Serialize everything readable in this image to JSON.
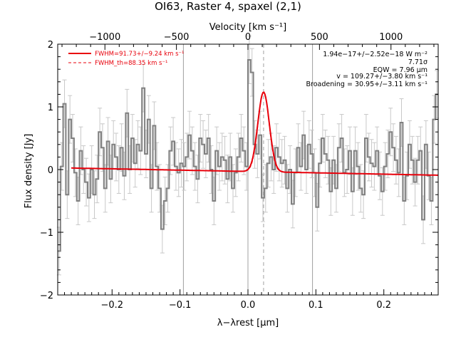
{
  "chart_data": {
    "type": "line",
    "title": "OI63, Raster 4, spaxel (2,1)",
    "xlabel": "λ−λrest [μm]",
    "ylabel": "Flux density [Jy]",
    "top_xlabel": "Velocity [km s⁻¹]",
    "xlim": [
      -0.28,
      0.28
    ],
    "ylim": [
      -2.0,
      2.0
    ],
    "top_xlim": [
      -1330,
      1330
    ],
    "x_ticks": [
      -0.2,
      -0.1,
      0.0,
      0.1,
      0.2
    ],
    "x_tick_labels": [
      "−0.2",
      "−0.1",
      "0.0",
      "0.1",
      "0.2"
    ],
    "y_ticks": [
      -2,
      -1,
      0,
      1,
      2
    ],
    "y_tick_labels": [
      "−2",
      "−1",
      "0",
      "1",
      "2"
    ],
    "top_ticks": [
      -1000,
      -500,
      0,
      500,
      1000
    ],
    "top_tick_labels": [
      "−1000",
      "−500",
      "0",
      "500",
      "1000"
    ],
    "vertical_lines": [
      -0.095,
      0.0,
      0.095
    ],
    "line_center": 0.023,
    "series": [
      {
        "name": "data",
        "style": "step",
        "color": "#808080",
        "x": [
          -0.28,
          -0.276,
          -0.272,
          -0.268,
          -0.264,
          -0.26,
          -0.256,
          -0.252,
          -0.248,
          -0.244,
          -0.24,
          -0.236,
          -0.232,
          -0.228,
          -0.224,
          -0.22,
          -0.216,
          -0.212,
          -0.208,
          -0.204,
          -0.2,
          -0.196,
          -0.192,
          -0.188,
          -0.184,
          -0.18,
          -0.176,
          -0.172,
          -0.168,
          -0.164,
          -0.16,
          -0.156,
          -0.152,
          -0.148,
          -0.144,
          -0.14,
          -0.136,
          -0.132,
          -0.128,
          -0.124,
          -0.12,
          -0.116,
          -0.112,
          -0.108,
          -0.104,
          -0.1,
          -0.096,
          -0.092,
          -0.088,
          -0.084,
          -0.08,
          -0.076,
          -0.072,
          -0.068,
          -0.064,
          -0.06,
          -0.056,
          -0.052,
          -0.048,
          -0.044,
          -0.04,
          -0.036,
          -0.032,
          -0.028,
          -0.024,
          -0.02,
          -0.016,
          -0.012,
          -0.008,
          -0.004,
          0.0,
          0.004,
          0.008,
          0.012,
          0.016,
          0.02,
          0.024,
          0.028,
          0.032,
          0.036,
          0.04,
          0.044,
          0.048,
          0.052,
          0.056,
          0.06,
          0.064,
          0.068,
          0.072,
          0.076,
          0.08,
          0.084,
          0.088,
          0.092,
          0.096,
          0.1,
          0.104,
          0.108,
          0.112,
          0.116,
          0.12,
          0.124,
          0.128,
          0.132,
          0.136,
          0.14,
          0.144,
          0.148,
          0.152,
          0.156,
          0.16,
          0.164,
          0.168,
          0.172,
          0.176,
          0.18,
          0.184,
          0.188,
          0.192,
          0.196,
          0.2,
          0.204,
          0.208,
          0.212,
          0.216,
          0.22,
          0.224,
          0.228,
          0.232,
          0.236,
          0.24,
          0.244,
          0.248,
          0.252,
          0.256,
          0.26,
          0.264,
          0.268,
          0.272,
          0.276
        ],
        "y": [
          -1.3,
          0.05,
          1.05,
          -0.4,
          0.8,
          0.5,
          -0.05,
          -0.5,
          0.3,
          0.0,
          -0.2,
          -0.45,
          0.0,
          -0.4,
          -0.15,
          0.6,
          0.35,
          -0.3,
          0.45,
          -0.15,
          0.4,
          0.2,
          0.0,
          0.35,
          -0.1,
          0.9,
          0.0,
          0.5,
          0.1,
          0.4,
          0.3,
          1.3,
          0.25,
          0.8,
          -0.3,
          0.7,
          0.05,
          -0.3,
          -0.95,
          -0.5,
          -0.3,
          0.3,
          0.45,
          0.05,
          -0.05,
          0.1,
          0.05,
          0.2,
          0.55,
          0.3,
          0.05,
          -0.15,
          0.5,
          0.4,
          0.25,
          0.5,
          0.0,
          -0.5,
          0.3,
          0.05,
          0.2,
          0.15,
          -0.15,
          0.2,
          -0.3,
          -0.05,
          0.2,
          0.5,
          0.3,
          0.05,
          1.75,
          1.55,
          0.4,
          0.25,
          0.55,
          -0.45,
          -0.3,
          0.1,
          0.2,
          0.0,
          0.35,
          0.2,
          0.1,
          0.15,
          -0.3,
          0.0,
          -0.55,
          -0.05,
          0.35,
          0.05,
          0.55,
          0.0,
          0.4,
          0.25,
          -0.05,
          -0.6,
          0.1,
          0.5,
          0.25,
          0.15,
          -0.35,
          0.15,
          -0.3,
          0.35,
          0.5,
          -0.05,
          0.0,
          0.3,
          -0.35,
          0.3,
          0.05,
          -0.3,
          -0.4,
          0.5,
          0.2,
          0.1,
          0.05,
          0.3,
          -0.1,
          -0.35,
          0.05,
          0.25,
          0.6,
          0.35,
          0.15,
          -0.05,
          0.75,
          -0.5,
          -0.1,
          0.4,
          0.15,
          -0.2,
          0.15,
          0.3,
          -0.8,
          0.4,
          -0.1,
          -0.5,
          0.8,
          1.2
        ],
        "error": 0.38
      },
      {
        "name": "FWHM=91.73+/−9.24 km s⁻¹",
        "style": "solid",
        "color": "#e8000b",
        "baseline": [
          0.025,
          -0.09
        ],
        "amplitude": 1.27,
        "center": 0.023,
        "sigma": 0.0085
      },
      {
        "name": "FWHM_th=88.35 km s⁻¹",
        "style": "dashed",
        "color": "#e8000b",
        "baseline": [
          0.025,
          -0.09
        ],
        "amplitude": 1.27,
        "center": 0.023,
        "sigma": 0.0082
      }
    ],
    "annotations": [
      "1.94e−17+/−2.52e−18 W m⁻²",
      "7.71σ",
      "EQW = 7.96 μm",
      "v = 109.27+/−3.80 km s⁻¹",
      "Broadening = 30.95+/−3.11 km s⁻¹"
    ],
    "grid": false,
    "legend_position": "top-left"
  },
  "colors": {
    "data": "#808080",
    "fit": "#e8000b",
    "vline": "#a0a0a0",
    "errorbar": "#c8c8c8"
  }
}
